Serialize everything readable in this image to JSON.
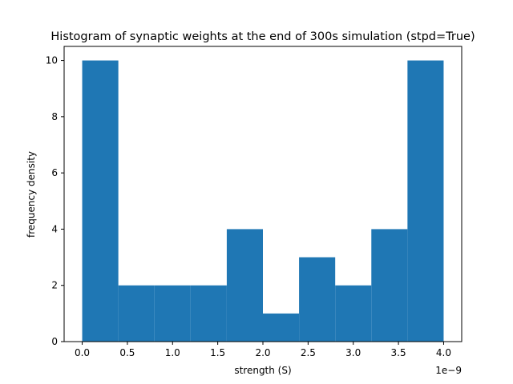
{
  "chart_data": {
    "type": "bar",
    "title": "Histogram of synaptic weights at the end of 300s simulation (stpd=True)",
    "xlabel": "strength (S)",
    "ylabel": "frequency density",
    "x_offset_label": "1e−9",
    "bin_edges": [
      0.0,
      0.4,
      0.8,
      1.2,
      1.6,
      2.0,
      2.4,
      2.8,
      3.2,
      3.6,
      4.0
    ],
    "values": [
      10,
      2,
      2,
      2,
      4,
      1,
      3,
      2,
      4,
      10
    ],
    "xlim": [
      -0.2,
      4.2
    ],
    "ylim": [
      0,
      10.5
    ],
    "xticks": [
      0.0,
      0.5,
      1.0,
      1.5,
      2.0,
      2.5,
      3.0,
      3.5,
      4.0
    ],
    "xtick_labels": [
      "0.0",
      "0.5",
      "1.0",
      "1.5",
      "2.0",
      "2.5",
      "3.0",
      "3.5",
      "4.0"
    ],
    "yticks": [
      0,
      2,
      4,
      6,
      8,
      10
    ],
    "ytick_labels": [
      "0",
      "2",
      "4",
      "6",
      "8",
      "10"
    ],
    "bar_color": "#1f77b4",
    "grid": false,
    "legend": false
  }
}
